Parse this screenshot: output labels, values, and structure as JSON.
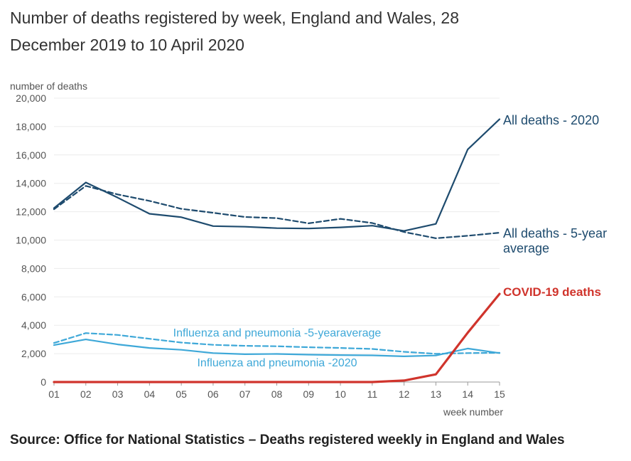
{
  "title": "Number of deaths registered by week, England and Wales, 28 December 2019 to 10 April 2020",
  "source": "Source: Office for National Statistics – Deaths registered weekly in England and Wales",
  "chart_data": {
    "type": "line",
    "title": "Number of deaths registered by week, England and Wales, 28 December 2019 to 10 April 2020",
    "ylabel": "number of deaths",
    "xlabel": "week number",
    "ylim": [
      0,
      20000
    ],
    "yticks": [
      0,
      2000,
      4000,
      6000,
      8000,
      10000,
      12000,
      14000,
      16000,
      18000,
      20000
    ],
    "ytick_labels": [
      "0",
      "2,000",
      "4,000",
      "6,000",
      "8,000",
      "10,000",
      "12,000",
      "14,000",
      "16,000",
      "18,000",
      "20,000"
    ],
    "categories": [
      "01",
      "02",
      "03",
      "04",
      "05",
      "06",
      "07",
      "08",
      "09",
      "10",
      "11",
      "12",
      "13",
      "14",
      "15"
    ],
    "grid": true,
    "series": [
      {
        "name": "All deaths - 2020",
        "color": "#1e4b6e",
        "dash": "solid",
        "values": [
          12254,
          14058,
          12990,
          11856,
          11612,
          10986,
          10944,
          10841,
          10816,
          10895,
          11019,
          10645,
          11141,
          16387,
          18516
        ]
      },
      {
        "name": "All deaths - 5-year average",
        "color": "#1e4b6e",
        "dash": "dashed",
        "values": [
          12175,
          13822,
          13216,
          12760,
          12206,
          11925,
          11627,
          11548,
          11183,
          11498,
          11205,
          10573,
          10130,
          10305,
          10520
        ]
      },
      {
        "name": "COVID-19 deaths",
        "color": "#d0342c",
        "dash": "solid",
        "values": [
          0,
          0,
          0,
          0,
          0,
          0,
          0,
          0,
          0,
          0,
          0,
          103,
          539,
          3475,
          6213
        ]
      },
      {
        "name": "Influenza and pneumonia -5-yearaverage",
        "color": "#3ea8d8",
        "dash": "dashed",
        "values": [
          2750,
          3450,
          3320,
          3050,
          2780,
          2620,
          2550,
          2520,
          2450,
          2400,
          2330,
          2130,
          1990,
          2040,
          2060
        ]
      },
      {
        "name": "Influenza and pneumonia -2020",
        "color": "#3ea8d8",
        "dash": "solid",
        "values": [
          2600,
          3000,
          2650,
          2400,
          2270,
          2040,
          1960,
          1980,
          1930,
          1900,
          1880,
          1810,
          1870,
          2360,
          2040
        ]
      }
    ],
    "series_labels": [
      {
        "series": 0,
        "text": "All deaths - 2020"
      },
      {
        "series": 1,
        "text": "All deaths - 5-year average"
      },
      {
        "series": 2,
        "text": "COVID-19 deaths"
      },
      {
        "series": 3,
        "text": "Influenza and pneumonia -5-yearaverage"
      },
      {
        "series": 4,
        "text": "Influenza and pneumonia -2020"
      }
    ]
  }
}
